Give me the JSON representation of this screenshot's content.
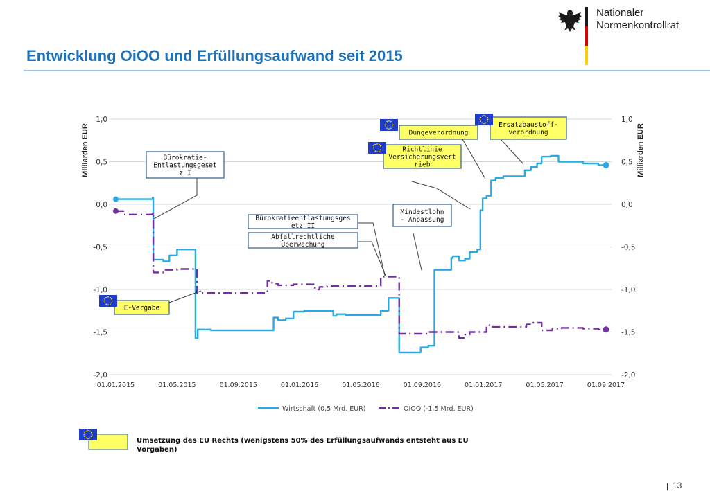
{
  "header": {
    "org_line1": "Nationaler",
    "org_line2": "Normenkontrollrat",
    "title": "Entwicklung OiOO und Erfüllungsaufwand seit 2015"
  },
  "colors": {
    "wirtschaft": "#29abe2",
    "oioo": "#7030a0",
    "callout_fill": "#ffff66",
    "callout_border": "#2e5d8c",
    "eu_blue": "#1f3dc8",
    "title_blue": "#1f72b8"
  },
  "chart_data": {
    "type": "line",
    "ylabel_left": "Milliarden EUR",
    "ylabel_right": "Milliarden EUR",
    "ylim": [
      -2.0,
      1.0
    ],
    "y_ticks": [
      "1,0",
      "0,5",
      "0,0",
      "-0,5",
      "-1,0",
      "-1,5",
      "-2,0"
    ],
    "y_tick_values": [
      1.0,
      0.5,
      0.0,
      -0.5,
      -1.0,
      -1.5,
      -2.0
    ],
    "x_ticks": [
      "01.01.2015",
      "01.05.2015",
      "01.09.2015",
      "01.01.2016",
      "01.05.2016",
      "01.09.2016",
      "01.01.2017",
      "01.05.2017",
      "01.09.2017"
    ],
    "x_tick_values": [
      0,
      4,
      8,
      12,
      16,
      20,
      24,
      28,
      32
    ],
    "grid": "horizontal",
    "legend_placement": "bottom",
    "series": [
      {
        "name": "Wirtschaft (0,5 Mrd. EUR)",
        "style": "solid",
        "x": [
          0,
          2.4,
          2.4,
          2.45,
          2.45,
          3.1,
          3.1,
          3.5,
          3.5,
          4.0,
          4.0,
          5.2,
          5.2,
          5.35,
          5.35,
          6.2,
          6.2,
          10.3,
          10.3,
          10.6,
          10.6,
          11.1,
          11.1,
          11.6,
          11.6,
          12.3,
          12.3,
          14.2,
          14.2,
          14.4,
          14.4,
          15.0,
          15.0,
          17.3,
          17.3,
          17.8,
          17.8,
          18.5,
          18.5,
          19.9,
          19.9,
          20.4,
          20.4,
          20.8,
          20.8,
          21.9,
          21.9,
          22.0,
          22.0,
          22.4,
          22.4,
          22.8,
          22.8,
          23.1,
          23.1,
          23.6,
          23.6,
          23.8,
          23.8,
          23.95,
          23.95,
          24.2,
          24.2,
          24.5,
          24.5,
          24.8,
          24.8,
          25.3,
          25.3,
          26.7,
          26.7,
          27.1,
          27.1,
          27.5,
          27.5,
          27.8,
          27.8,
          28.4,
          28.4,
          28.9,
          28.9,
          30.5,
          30.5,
          31.5,
          31.5,
          32.0
        ],
        "y": [
          0.06,
          0.06,
          0.08,
          0.08,
          -0.65,
          -0.65,
          -0.67,
          -0.67,
          -0.6,
          -0.6,
          -0.53,
          -0.53,
          -1.57,
          -1.57,
          -1.47,
          -1.47,
          -1.48,
          -1.48,
          -1.33,
          -1.33,
          -1.36,
          -1.36,
          -1.34,
          -1.34,
          -1.26,
          -1.26,
          -1.25,
          -1.25,
          -1.31,
          -1.31,
          -1.29,
          -1.29,
          -1.3,
          -1.3,
          -1.25,
          -1.25,
          -1.1,
          -1.1,
          -1.74,
          -1.74,
          -1.68,
          -1.68,
          -1.66,
          -1.66,
          -0.77,
          -0.77,
          -0.63,
          -0.63,
          -0.61,
          -0.61,
          -0.66,
          -0.66,
          -0.64,
          -0.64,
          -0.56,
          -0.56,
          -0.53,
          -0.53,
          -0.07,
          -0.07,
          0.07,
          0.07,
          0.1,
          0.1,
          0.28,
          0.28,
          0.31,
          0.31,
          0.33,
          0.33,
          0.4,
          0.4,
          0.44,
          0.44,
          0.48,
          0.48,
          0.56,
          0.56,
          0.57,
          0.57,
          0.5,
          0.5,
          0.48,
          0.48,
          0.46,
          0.46
        ]
      },
      {
        "name": "OIOO (-1,5 Mrd. EUR)",
        "style": "dashdot",
        "x": [
          0,
          0.5,
          0.5,
          2.4,
          2.4,
          2.45,
          2.45,
          3.1,
          3.1,
          4.0,
          4.0,
          5.3,
          5.3,
          5.35,
          5.35,
          9.9,
          9.9,
          10.2,
          10.2,
          10.6,
          10.6,
          11.6,
          11.6,
          13.0,
          13.0,
          13.3,
          13.3,
          13.8,
          13.8,
          17.3,
          17.3,
          18.5,
          18.5,
          20.4,
          20.4,
          22.4,
          22.4,
          22.8,
          22.8,
          23.1,
          23.1,
          24.2,
          24.2,
          24.4,
          24.4,
          26.8,
          26.8,
          27.2,
          27.2,
          27.8,
          27.8,
          28.5,
          28.5,
          29.1,
          29.1,
          30.5,
          30.5,
          31.5,
          31.5,
          32.0
        ],
        "y": [
          -0.08,
          -0.08,
          -0.12,
          -0.12,
          -0.1,
          -0.1,
          -0.8,
          -0.8,
          -0.77,
          -0.77,
          -0.76,
          -0.76,
          -1.04,
          -1.04,
          -1.04,
          -1.04,
          -0.9,
          -0.9,
          -0.93,
          -0.93,
          -0.95,
          -0.95,
          -0.94,
          -0.94,
          -1.0,
          -1.0,
          -0.97,
          -0.97,
          -0.96,
          -0.96,
          -0.85,
          -0.85,
          -1.52,
          -1.52,
          -1.5,
          -1.5,
          -1.57,
          -1.57,
          -1.53,
          -1.53,
          -1.5,
          -1.5,
          -1.42,
          -1.42,
          -1.44,
          -1.44,
          -1.41,
          -1.41,
          -1.39,
          -1.39,
          -1.48,
          -1.48,
          -1.46,
          -1.46,
          -1.45,
          -1.45,
          -1.46,
          -1.46,
          -1.47,
          -1.47
        ]
      }
    ]
  },
  "annotations": [
    {
      "id": "buerokratie1",
      "text": "Bürokratie-Entlastungsgesetz I",
      "eu": false
    },
    {
      "id": "evergabe",
      "text": "E-Vergabe",
      "eu": true
    },
    {
      "id": "buerokratie2",
      "text": "Bürokratieentlastungsgesetz II",
      "eu": false
    },
    {
      "id": "abfall",
      "text": "Abfallrechtliche Überwachung",
      "eu": false
    },
    {
      "id": "duenge",
      "text": "Düngeverordnung",
      "eu": true
    },
    {
      "id": "richtlinie",
      "text": "Richtlinie Versicherungsvertrieb",
      "eu": true
    },
    {
      "id": "mindestlohn",
      "text": "Mindestlohn - Anpassung",
      "eu": false
    },
    {
      "id": "ersatz",
      "text": "Ersatzbaustoff-verordnung",
      "eu": true
    }
  ],
  "footnote": {
    "text": "Umsetzung des EU Rechts (wenigstens 50% des Erfüllungsaufwands entsteht aus EU Vorgaben)"
  },
  "page_number": "13"
}
